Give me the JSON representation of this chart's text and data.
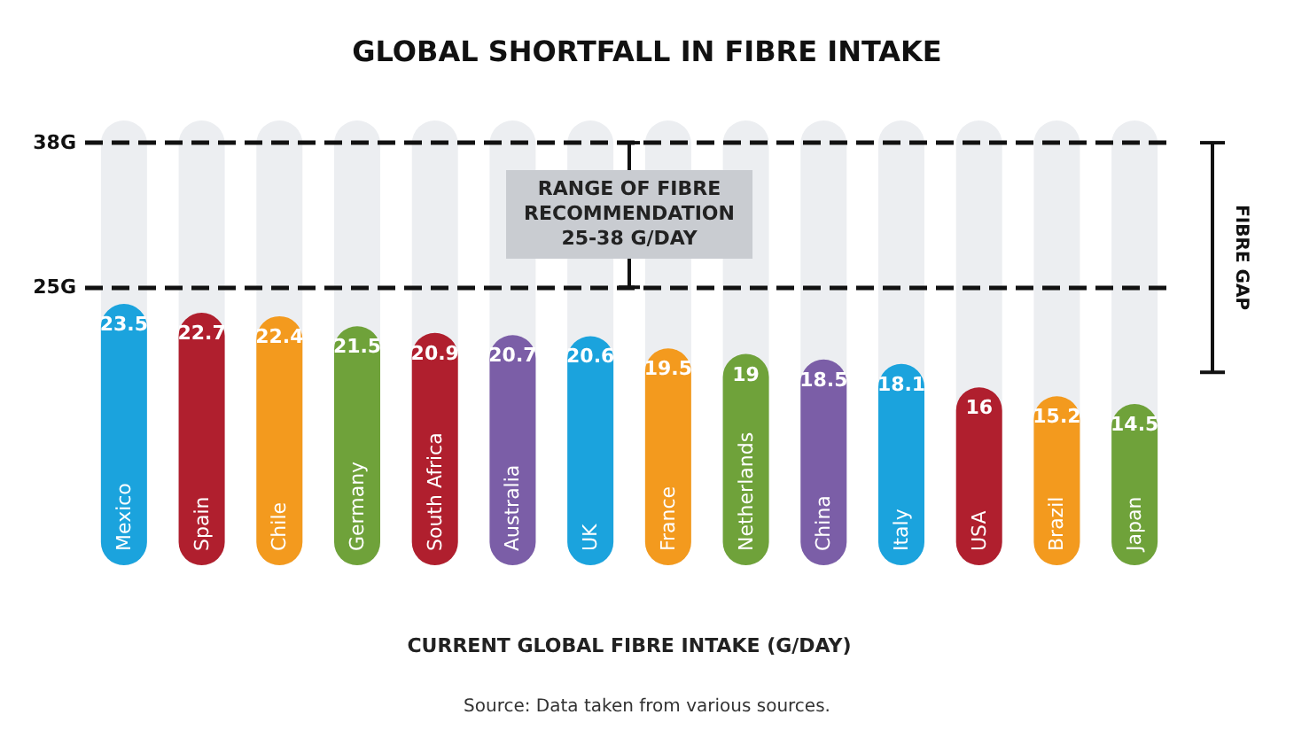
{
  "chart_data": {
    "type": "bar",
    "title": "GLOBAL SHORTFALL IN FIBRE INTAKE",
    "xlabel": "CURRENT GLOBAL FIBRE INTAKE (G/DAY)",
    "categories": [
      "Mexico",
      "Spain",
      "Chile",
      "Germany",
      "South Africa",
      "Australia",
      "UK",
      "France",
      "Netherlands",
      "China",
      "Italy",
      "USA",
      "Brazil",
      "Japan"
    ],
    "values": [
      23.5,
      22.7,
      22.4,
      21.5,
      20.9,
      20.7,
      20.6,
      19.5,
      19,
      18.5,
      18.1,
      16,
      15.2,
      14.5
    ],
    "colors": [
      "#1ba3dd",
      "#b01f2e",
      "#f39a1e",
      "#6fa23a",
      "#b01f2e",
      "#7b5ea7",
      "#1ba3dd",
      "#f39a1e",
      "#6fa23a",
      "#7b5ea7",
      "#1ba3dd",
      "#b01f2e",
      "#f39a1e",
      "#6fa23a"
    ],
    "ylim": [
      0,
      40
    ],
    "data_labels": true,
    "grid": false,
    "ref_lines": [
      {
        "axis": "y",
        "value": 25,
        "label": "25G",
        "line_style": "dashed",
        "color": "#111111"
      },
      {
        "axis": "y",
        "value": 38,
        "label": "38G",
        "line_style": "dashed",
        "color": "#111111"
      }
    ],
    "annotations": [
      "RANGE OF FIBRE\nRECOMMENDATION\n25-38 G/DAY",
      "FIBRE GAP",
      "Source: Data taken from various sources."
    ]
  }
}
